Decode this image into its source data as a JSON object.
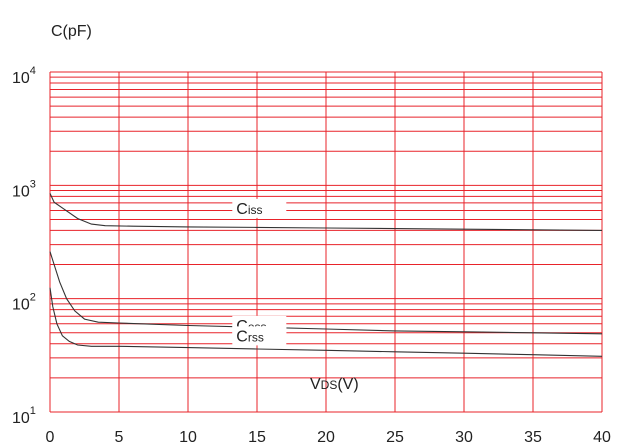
{
  "chart_data": {
    "type": "line",
    "title": "",
    "ylabel": "C(pF)",
    "xlabel_main": "V",
    "xlabel_sub": "DS",
    "xlabel_unit": "(V)",
    "xlim": [
      0,
      40
    ],
    "ylim": [
      10,
      10000
    ],
    "yscale": "log",
    "grid": true,
    "x_ticks": [
      0,
      5,
      10,
      15,
      20,
      25,
      30,
      35,
      40
    ],
    "y_ticks": [
      {
        "base": "10",
        "exp": "1",
        "value": 10
      },
      {
        "base": "10",
        "exp": "2",
        "value": 100
      },
      {
        "base": "10",
        "exp": "3",
        "value": 1000
      },
      {
        "base": "10",
        "exp": "4",
        "value": 10000
      }
    ],
    "series": [
      {
        "main": "C",
        "sub": "iss",
        "label_pos": {
          "x": 13.5,
          "y": 560
        },
        "x": [
          0,
          0.3,
          1,
          2,
          3,
          4,
          6,
          10,
          15,
          20,
          25,
          30,
          35,
          40
        ],
        "y": [
          850,
          710,
          620,
          510,
          455,
          440,
          436,
          430,
          425,
          420,
          415,
          410,
          405,
          400
        ]
      },
      {
        "main": "C",
        "sub": "oss",
        "label_pos": {
          "x": 13.5,
          "y": 52
        },
        "x": [
          0,
          0.3,
          0.7,
          1.2,
          1.8,
          2.5,
          3.5,
          5,
          10,
          15,
          20,
          25,
          30,
          35,
          40
        ],
        "y": [
          260,
          200,
          140,
          100,
          78,
          66,
          62,
          61,
          58,
          56,
          54,
          52,
          51,
          50,
          49
        ]
      },
      {
        "main": "C",
        "sub": "rss",
        "label_pos": {
          "x": 13.5,
          "y": 42
        },
        "x": [
          0,
          0.2,
          0.5,
          0.9,
          1.4,
          2,
          3,
          5,
          10,
          15,
          20,
          25,
          30,
          35,
          40
        ],
        "y": [
          125,
          85,
          60,
          47,
          42,
          39,
          38,
          38,
          37,
          36,
          35,
          34,
          33,
          32,
          31
        ]
      }
    ]
  }
}
